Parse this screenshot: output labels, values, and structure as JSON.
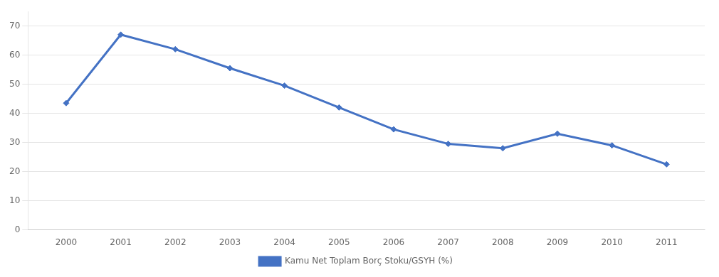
{
  "chart_data": {
    "type": "line",
    "x": [
      2000,
      2001,
      2002,
      2003,
      2004,
      2005,
      2006,
      2007,
      2008,
      2009,
      2010,
      2011
    ],
    "series": [
      {
        "name": "Kamu Net Toplam Borç Stoku/GSYH (%)",
        "color": "#4472C4",
        "marker": "diamond",
        "values": [
          43.5,
          67.0,
          62.0,
          55.5,
          49.5,
          42.0,
          34.5,
          29.5,
          28.0,
          33.0,
          29.0,
          22.5
        ]
      }
    ],
    "xlim": [
      1999.3,
      2011.7
    ],
    "xticks": [
      2000,
      2001,
      2002,
      2003,
      2004,
      2005,
      2006,
      2007,
      2008,
      2009,
      2010,
      2011
    ],
    "ylim": [
      0,
      75
    ],
    "yticks": [
      0,
      10,
      20,
      30,
      40,
      50,
      60,
      70
    ],
    "grid": "y",
    "legend": "bottom"
  }
}
